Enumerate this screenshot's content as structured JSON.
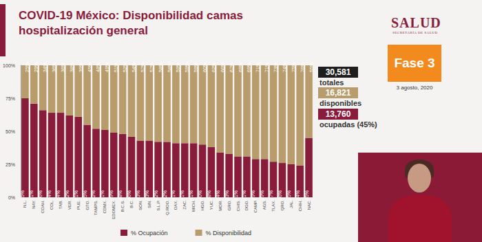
{
  "header": {
    "logo": "SALUD",
    "logo_sub": "SECRETARÍA DE SALUD",
    "phase": "Fase 3",
    "date": "3 agosto, 2020"
  },
  "summary": [
    {
      "value": "30,581",
      "label": "totales",
      "color": "#1e1e1e"
    },
    {
      "value": "16,821",
      "label": "disponibles",
      "color": "#b89c6b"
    },
    {
      "value": "13,760",
      "label": "ocupadas (45%)",
      "color": "#8a1c3b"
    }
  ],
  "chart_data": {
    "type": "bar",
    "title": "COVID-19 México: Disponibilidad camas hospitalización general",
    "categories": [
      "N.L.",
      "NAY.",
      "COAH.",
      "COL.",
      "TAB.",
      "VER.",
      "PUE.",
      "GTO.",
      "TAMPS.",
      "CDMX.",
      "EDOMEX.",
      "B.C.S.",
      "B.C.",
      "SON.",
      "SIN.",
      "S.L.P.",
      "Q.ROO.",
      "OAX.",
      "ZAC.",
      "MICH.",
      "HGO.",
      "YUC.",
      "MOR.",
      "GRO.",
      "CHIS.",
      "DGO.",
      "CAMP.",
      "AGS.",
      "TLAX.",
      "QRO.",
      "JAL.",
      "CHIH.",
      "NAC."
    ],
    "series": [
      {
        "name": "% Ocupación",
        "color": "#8a1c3b",
        "values": [
          75,
          71,
          66,
          64,
          64,
          62,
          61,
          55,
          52,
          51,
          49,
          48,
          46,
          43,
          43,
          42,
          42,
          41,
          41,
          41,
          40,
          38,
          34,
          33,
          31,
          31,
          29,
          29,
          27,
          26,
          25,
          24,
          45
        ],
        "value_labels": [
          "75%",
          "71%",
          "66%",
          "64%",
          "64%",
          "62%",
          "61%",
          "55%",
          "52%",
          "51%",
          "49%",
          "48%",
          "46%",
          "43%",
          "43%",
          "42%",
          "42%",
          "41%",
          "41%",
          "41%",
          "40%",
          "38%",
          "34%",
          "33%",
          "31%",
          "31%",
          "29%",
          "29%",
          "27%",
          "26%",
          "25%",
          "24%",
          "45%"
        ]
      },
      {
        "name": "% Disponibilidad",
        "color": "#b89c6b",
        "values": [
          25,
          29,
          34,
          36,
          36,
          38,
          39,
          45,
          48,
          49,
          51,
          52,
          54,
          57,
          57,
          58,
          58,
          59,
          59,
          59,
          60,
          62,
          66,
          67,
          69,
          69,
          71,
          71,
          73,
          74,
          75,
          76,
          55
        ],
        "value_labels": [
          "25%",
          "29%",
          "34%",
          "36%",
          "36%",
          "38%",
          "39%",
          "45%",
          "48%",
          "49%",
          "51%",
          "52%",
          "54%",
          "57%",
          "57%",
          "58%",
          "58%",
          "59%",
          "59%",
          "59%",
          "60%",
          "62%",
          "66%",
          "67%",
          "69%",
          "69%",
          "71%",
          "71%",
          "73%",
          "74%",
          "75%",
          "76%",
          "55%"
        ]
      }
    ],
    "stacked": true,
    "data_labels": true,
    "ylim": [
      0,
      100
    ],
    "yticks": [
      {
        "value": 0,
        "label": "0%"
      },
      {
        "value": 25,
        "label": "25%"
      },
      {
        "value": 50,
        "label": "50%"
      },
      {
        "value": 75,
        "label": "75%"
      },
      {
        "value": 100,
        "label": "100%"
      }
    ],
    "grid": false,
    "legend": "bottom"
  }
}
